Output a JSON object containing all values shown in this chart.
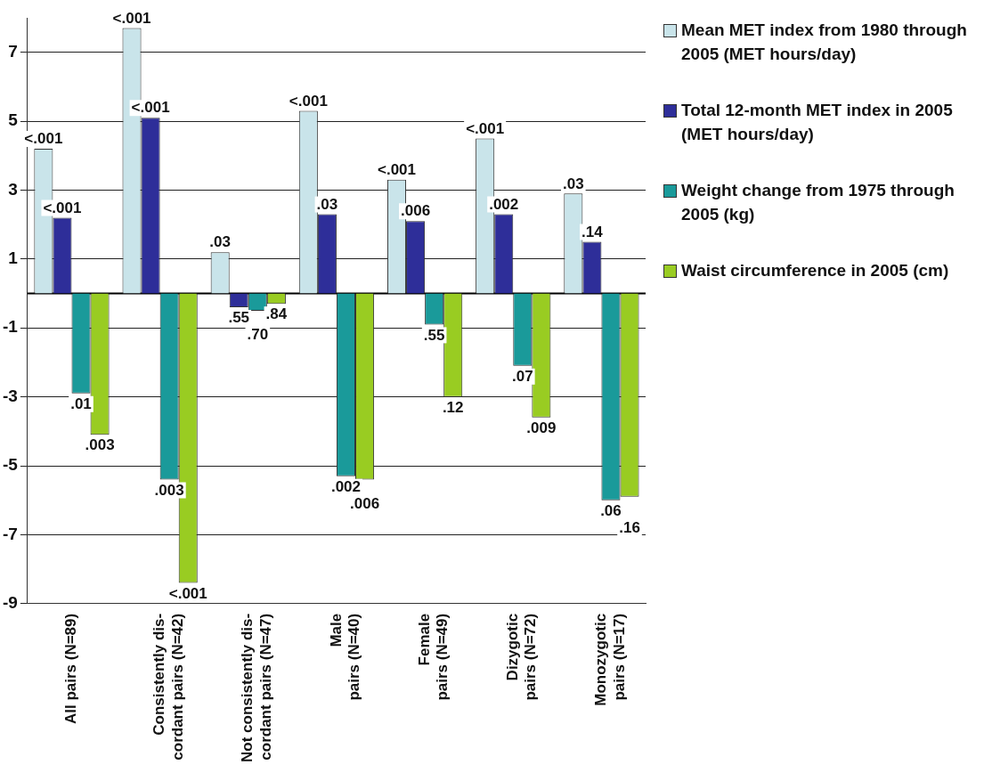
{
  "chart_data": {
    "type": "bar",
    "categories": [
      "All pairs (N=89)",
      "Consistently dis-\ncordant pairs (N=42)",
      "Not consistently dis-\ncordant pairs (N=47)",
      "Male\npairs (N=40)",
      "Female\npairs (N=49)",
      "Dizygotic\npairs (N=72)",
      "Monozygotic\npairs (N=17)"
    ],
    "series": [
      {
        "name": "Mean MET index from 1980 through 2005 (MET hours/day)",
        "color": "#c9e4ea",
        "values": [
          4.2,
          7.7,
          1.2,
          5.3,
          3.3,
          4.5,
          2.9
        ]
      },
      {
        "name": "Total 12-month MET index in 2005 (MET hours/day)",
        "color": "#2e2e99",
        "values": [
          2.2,
          5.1,
          -0.4,
          2.3,
          2.1,
          2.3,
          1.5
        ]
      },
      {
        "name": "Weight change from 1975 through 2005 (kg)",
        "color": "#1a9a9a",
        "values": [
          -2.9,
          -5.4,
          -0.5,
          -5.3,
          -0.9,
          -2.1,
          -6.0
        ]
      },
      {
        "name": "Waist circumference in 2005 (cm)",
        "color": "#99cc22",
        "values": [
          -4.1,
          -8.4,
          -0.3,
          -5.4,
          -3.0,
          -3.6,
          -5.9
        ]
      }
    ],
    "annotations": [
      "<.001",
      "<.001",
      ".01",
      ".003",
      "<.001",
      "<.001",
      ".003",
      "<.001",
      ".03",
      ".55",
      ".70",
      ".84",
      "<.001",
      ".03",
      ".002",
      ".006",
      "<.001",
      ".006",
      ".55",
      ".12",
      "<.001",
      ".002",
      ".07",
      ".009",
      ".03",
      ".14",
      ".06",
      ".16"
    ],
    "ylim": [
      -9,
      8
    ],
    "yticks": [
      -9,
      -7,
      -5,
      -3,
      -1,
      1,
      3,
      5,
      7
    ],
    "grid": "y",
    "legend": "right"
  }
}
